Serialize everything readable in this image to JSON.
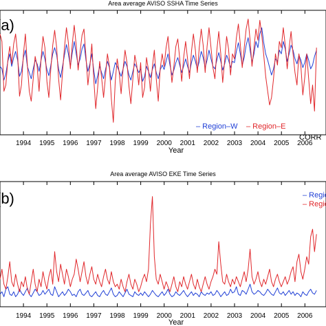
{
  "panels": [
    {
      "id": "a",
      "panel_label": "(a)",
      "title": "Area average AVISO SSHA Time Series",
      "xlabel": "Year",
      "legend": {
        "labels": [
          "– Region–W",
          "– Region–E"
        ],
        "corr_text": "CORR"
      }
    },
    {
      "id": "b",
      "panel_label": "(b)",
      "title": "Area average AVISO EKE Time Series",
      "xlabel": "Year",
      "legend": {
        "labels": [
          "– Regio",
          "– Regio"
        ]
      }
    }
  ],
  "colors": {
    "region_w": "#1f3fd6",
    "region_e": "#e0262a",
    "axis": "#000000"
  },
  "chart_data": [
    {
      "type": "line",
      "title": "Area average AVISO SSHA Time Series",
      "xlabel": "Year",
      "ylabel": "",
      "x_ticks": [
        "1994",
        "1995",
        "1996",
        "1997",
        "1998",
        "1999",
        "2000",
        "2001",
        "2002",
        "2003",
        "2004",
        "2005",
        "2006"
      ],
      "xlim": [
        1993.0,
        2006.9
      ],
      "ylim": [
        -1.0,
        1.0
      ],
      "x_start": 1993.0,
      "x_step": 0.0833,
      "series": [
        {
          "name": "Region–W",
          "color": "#1f3fd6",
          "values": [
            0.1,
            0.06,
            -0.12,
            -0.02,
            0.18,
            0.3,
            0.1,
            0.24,
            0.34,
            0.2,
            -0.06,
            0.02,
            0.24,
            0.36,
            0.1,
            0.0,
            -0.1,
            0.06,
            0.2,
            0.14,
            0.02,
            0.2,
            0.34,
            0.22,
            0.05,
            -0.05,
            0.12,
            0.3,
            0.4,
            0.28,
            0.06,
            -0.08,
            0.1,
            0.28,
            0.45,
            0.3,
            0.1,
            0.32,
            0.5,
            0.3,
            0.12,
            0.22,
            0.38,
            0.46,
            0.2,
            0.02,
            0.14,
            0.3,
            0.04,
            -0.18,
            -0.05,
            0.1,
            0.0,
            -0.1,
            0.05,
            0.18,
            0.08,
            -0.12,
            0.02,
            0.16,
            0.1,
            0.02,
            -0.06,
            0.06,
            0.18,
            0.1,
            -0.04,
            -0.12,
            0.02,
            0.14,
            0.08,
            0.0,
            0.06,
            -0.14,
            -0.06,
            0.1,
            0.02,
            -0.08,
            0.05,
            0.14,
            0.0,
            -0.1,
            0.04,
            0.12,
            0.05,
            0.18,
            0.3,
            0.12,
            -0.04,
            0.04,
            0.16,
            0.24,
            0.12,
            0.0,
            0.1,
            0.22,
            0.1,
            0.0,
            0.16,
            0.28,
            0.18,
            0.06,
            0.18,
            0.34,
            0.24,
            0.08,
            0.2,
            0.36,
            0.22,
            0.1,
            0.06,
            0.2,
            0.32,
            0.18,
            0.04,
            0.14,
            0.28,
            0.2,
            0.08,
            0.18,
            0.16,
            0.34,
            0.48,
            0.3,
            0.12,
            0.24,
            0.44,
            0.56,
            0.36,
            0.16,
            0.3,
            0.5,
            0.4,
            0.62,
            0.72,
            0.48,
            0.3,
            0.2,
            0.08,
            -0.04,
            0.06,
            0.22,
            0.18,
            0.36,
            0.3,
            0.5,
            0.38,
            0.18,
            0.3,
            0.44,
            0.36,
            0.22,
            0.14,
            0.28,
            0.2,
            0.08,
            0.16,
            0.3,
            0.2,
            0.06,
            0.12,
            0.26,
            0.36
          ]
        },
        {
          "name": "Region–E",
          "color": "#e0262a",
          "values": [
            0.62,
            0.5,
            -0.3,
            -0.2,
            0.2,
            0.42,
            0.14,
            0.46,
            0.62,
            0.3,
            -0.38,
            -0.2,
            0.3,
            0.62,
            0.12,
            -0.3,
            -0.46,
            -0.1,
            0.26,
            0.1,
            -0.3,
            0.22,
            0.58,
            0.4,
            -0.14,
            -0.4,
            0.06,
            0.44,
            0.68,
            0.4,
            -0.1,
            -0.44,
            0.0,
            0.4,
            0.72,
            0.48,
            0.06,
            0.46,
            0.76,
            0.44,
            0.04,
            0.34,
            0.6,
            0.7,
            0.26,
            -0.2,
            0.1,
            0.46,
            -0.1,
            -0.58,
            -0.24,
            0.18,
            -0.08,
            -0.4,
            -0.06,
            0.3,
            0.1,
            -0.42,
            -0.8,
            -0.14,
            0.22,
            0.0,
            -0.34,
            0.06,
            0.36,
            0.16,
            -0.22,
            -0.5,
            -0.1,
            0.28,
            0.12,
            -0.2,
            0.16,
            -0.4,
            -0.24,
            0.24,
            0.04,
            -0.3,
            0.1,
            0.36,
            -0.1,
            -0.46,
            0.06,
            0.3,
            0.1,
            0.4,
            0.58,
            0.2,
            -0.16,
            0.1,
            0.42,
            0.54,
            0.22,
            -0.14,
            0.24,
            0.5,
            0.22,
            -0.1,
            0.34,
            0.62,
            0.36,
            0.0,
            0.4,
            0.7,
            0.44,
            0.0,
            0.42,
            0.72,
            0.4,
            0.08,
            -0.1,
            0.36,
            0.66,
            0.3,
            -0.16,
            0.2,
            0.58,
            0.38,
            -0.04,
            0.3,
            0.22,
            0.56,
            0.78,
            0.46,
            0.08,
            0.4,
            0.7,
            0.86,
            0.52,
            0.1,
            0.4,
            0.7,
            0.52,
            0.84,
            0.6,
            0.28,
            -0.06,
            -0.3,
            -0.52,
            -0.4,
            -0.1,
            0.3,
            0.12,
            0.5,
            0.4,
            0.72,
            0.44,
            0.06,
            0.4,
            0.66,
            0.3,
            0.0,
            -0.2,
            0.3,
            0.1,
            -0.36,
            -0.08,
            0.3,
            -0.1,
            -0.5,
            -0.2,
            -0.62,
            0.4
          ]
        }
      ]
    },
    {
      "type": "line",
      "title": "Area average AVISO EKE Time Series",
      "xlabel": "Year",
      "ylabel": "",
      "x_ticks": [
        "1994",
        "1995",
        "1996",
        "1997",
        "1998",
        "1999",
        "2000",
        "2001",
        "2002",
        "2003",
        "2004",
        "2005",
        "2006"
      ],
      "xlim": [
        1993.0,
        2006.9
      ],
      "ylim": [
        0,
        100
      ],
      "x_start": 1993.0,
      "x_step": 0.0833,
      "series": [
        {
          "name": "Region–W",
          "color": "#1f3fd6",
          "values": [
            10,
            12,
            8,
            14,
            16,
            10,
            9,
            12,
            8,
            10,
            14,
            11,
            9,
            12,
            15,
            10,
            8,
            11,
            14,
            12,
            9,
            10,
            13,
            10,
            12,
            14,
            10,
            9,
            16,
            12,
            8,
            10,
            12,
            9,
            11,
            14,
            12,
            9,
            10,
            8,
            12,
            14,
            10,
            9,
            11,
            13,
            9,
            8,
            10,
            12,
            9,
            8,
            11,
            13,
            10,
            9,
            12,
            15,
            10,
            8,
            9,
            12,
            10,
            8,
            11,
            14,
            10,
            9,
            8,
            12,
            10,
            9,
            11,
            9,
            12,
            10,
            8,
            10,
            13,
            11,
            9,
            8,
            10,
            12,
            9,
            11,
            14,
            10,
            8,
            9,
            12,
            10,
            9,
            11,
            13,
            10,
            8,
            10,
            12,
            9,
            11,
            10,
            8,
            12,
            10,
            9,
            11,
            10,
            12,
            9,
            10,
            13,
            11,
            8,
            10,
            12,
            9,
            10,
            14,
            11,
            12,
            16,
            10,
            9,
            13,
            12,
            10,
            14,
            18,
            12,
            10,
            11,
            13,
            12,
            10,
            9,
            11,
            14,
            12,
            10,
            9,
            12,
            15,
            11,
            10,
            12,
            9,
            11,
            13,
            10,
            12,
            9,
            11,
            10,
            8,
            12,
            10,
            9,
            12,
            14,
            11,
            10,
            13
          ]
        },
        {
          "name": "Region–E",
          "color": "#e0262a",
          "values": [
            22,
            30,
            18,
            14,
            24,
            36,
            20,
            16,
            26,
            18,
            12,
            20,
            16,
            24,
            14,
            10,
            20,
            30,
            18,
            12,
            22,
            16,
            28,
            20,
            14,
            24,
            30,
            18,
            44,
            28,
            20,
            34,
            26,
            18,
            30,
            24,
            16,
            22,
            26,
            38,
            30,
            20,
            28,
            36,
            24,
            18,
            26,
            32,
            22,
            18,
            26,
            20,
            16,
            24,
            30,
            22,
            18,
            28,
            20,
            16,
            18,
            14,
            22,
            16,
            12,
            20,
            26,
            18,
            14,
            22,
            18,
            12,
            16,
            22,
            26,
            20,
            30,
            66,
            88,
            40,
            22,
            18,
            26,
            20,
            14,
            20,
            16,
            12,
            18,
            24,
            16,
            12,
            20,
            16,
            24,
            18,
            14,
            20,
            26,
            18,
            14,
            22,
            16,
            12,
            18,
            24,
            18,
            14,
            20,
            24,
            30,
            26,
            52,
            34,
            20,
            18,
            26,
            20,
            16,
            22,
            18,
            24,
            20,
            16,
            22,
            28,
            20,
            30,
            46,
            24,
            18,
            22,
            28,
            20,
            16,
            22,
            18,
            24,
            30,
            20,
            16,
            22,
            26,
            20,
            16,
            20,
            24,
            18,
            22,
            28,
            32,
            20,
            36,
            42,
            28,
            22,
            30,
            40,
            34,
            56,
            62,
            44,
            58
          ]
        }
      ]
    }
  ]
}
